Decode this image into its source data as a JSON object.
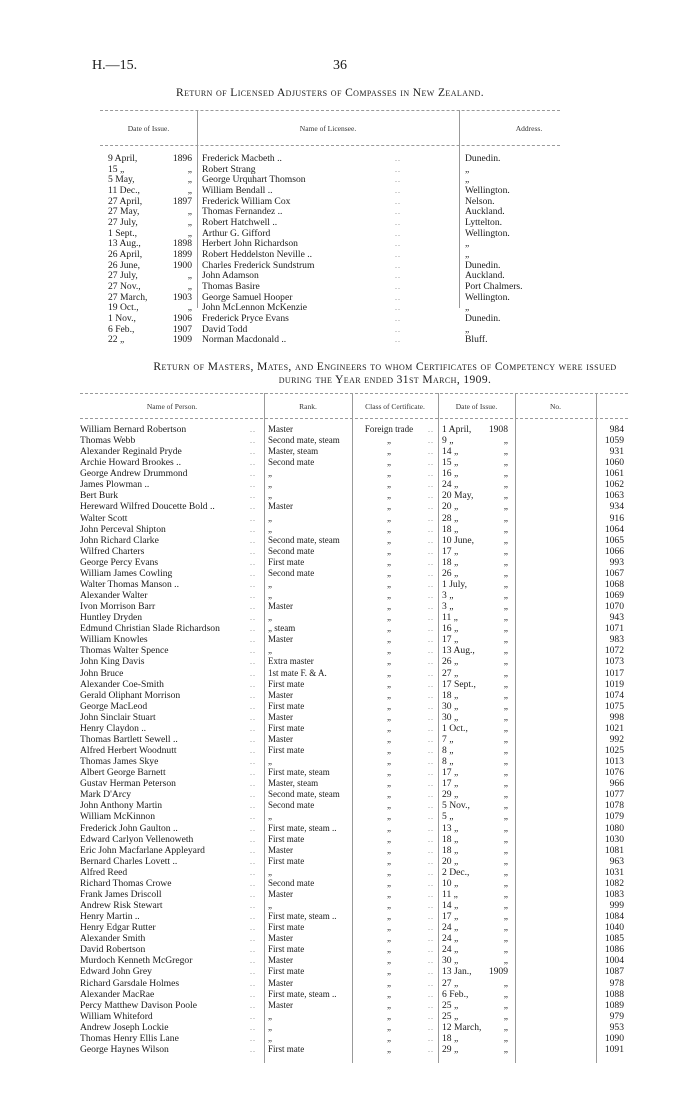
{
  "page_header": {
    "code": "H.—15.",
    "page_number": "36"
  },
  "adjusters": {
    "title": "Return of Licensed Adjusters of Compasses in New Zealand.",
    "columns": [
      "Date of Issue.",
      "Name of Licensee.",
      "Address."
    ],
    "rows": [
      {
        "day": "9 April,",
        "year": "1896",
        "name": "Frederick Macbeth ..",
        "address": "Dunedin."
      },
      {
        "day": "15 „",
        "year": "„",
        "name": "Robert Strang",
        "address": "„"
      },
      {
        "day": "5 May,",
        "year": "„",
        "name": "George Urquhart Thomson",
        "address": "„"
      },
      {
        "day": "11 Dec.,",
        "year": "„",
        "name": "William Bendall ..",
        "address": "Wellington."
      },
      {
        "day": "27 April,",
        "year": "1897",
        "name": "Frederick William Cox",
        "address": "Nelson."
      },
      {
        "day": "27 May,",
        "year": "„",
        "name": "Thomas Fernandez ..",
        "address": "Auckland."
      },
      {
        "day": "27 July,",
        "year": "„",
        "name": "Robert Hatchwell ..",
        "address": "Lyttelton."
      },
      {
        "day": "1 Sept.,",
        "year": "„",
        "name": "Arthur G. Gifford",
        "address": "Wellington."
      },
      {
        "day": "13 Aug.,",
        "year": "1898",
        "name": "Herbert John Richardson",
        "address": "„"
      },
      {
        "day": "26 April,",
        "year": "1899",
        "name": "Robert Heddelston Neville ..",
        "address": "„"
      },
      {
        "day": "26 June,",
        "year": "1900",
        "name": "Charles Frederick Sundstrum",
        "address": "Dunedin."
      },
      {
        "day": "27 July,",
        "year": "„",
        "name": "John Adamson",
        "address": "Auckland."
      },
      {
        "day": "27 Nov.,",
        "year": "„",
        "name": "Thomas Basire",
        "address": "Port Chalmers."
      },
      {
        "day": "27 March,",
        "year": "1903",
        "name": "George Samuel Hooper",
        "address": "Wellington."
      },
      {
        "day": "19 Oct.,",
        "year": "„",
        "name": "John McLennon McKenzie",
        "address": "„"
      },
      {
        "day": "1 Nov.,",
        "year": "1906",
        "name": "Frederick Pryce Evans",
        "address": "Dunedin."
      },
      {
        "day": "6 Feb.,",
        "year": "1907",
        "name": "David Todd",
        "address": "„"
      },
      {
        "day": "22 „",
        "year": "1909",
        "name": "Norman Macdonald ..",
        "address": "Bluff."
      }
    ]
  },
  "certificates": {
    "title_line1": "Return of Masters, Mates, and Engineers to whom Certificates of Competency were issued",
    "title_line2": "during the Year ended 31st March, 1909.",
    "columns": [
      "Name of Person.",
      "Rank.",
      "Class of Certificate.",
      "Date of Issue.",
      "No."
    ],
    "rows": [
      {
        "name": "William Bernard Robertson",
        "rank": "Master",
        "cls": "Foreign trade",
        "day": "1 April,",
        "year": "1908",
        "no": "984"
      },
      {
        "name": "Thomas Webb",
        "rank": "Second mate, steam",
        "cls": "„",
        "day": "9 „",
        "year": "„",
        "no": "1059"
      },
      {
        "name": "Alexander Reginald Pryde",
        "rank": "Master, steam",
        "cls": "„",
        "day": "14 „",
        "year": "„",
        "no": "931"
      },
      {
        "name": "Archie Howard Brookes ..",
        "rank": "Second mate",
        "cls": "„",
        "day": "15 „",
        "year": "„",
        "no": "1060"
      },
      {
        "name": "George Andrew Drummond",
        "rank": "„",
        "cls": "„",
        "day": "16 „",
        "year": "„",
        "no": "1061"
      },
      {
        "name": "James Plowman ..",
        "rank": "„",
        "cls": "„",
        "day": "24 „",
        "year": "„",
        "no": "1062"
      },
      {
        "name": "Bert Burk",
        "rank": "„",
        "cls": "„",
        "day": "20 May,",
        "year": "„",
        "no": "1063"
      },
      {
        "name": "Hereward Wilfred Doucette Bold ..",
        "rank": "Master",
        "cls": "„",
        "day": "20 „",
        "year": "„",
        "no": "934"
      },
      {
        "name": "Walter Scott",
        "rank": "„",
        "cls": "„",
        "day": "28 „",
        "year": "„",
        "no": "916"
      },
      {
        "name": "John Perceval Shipton",
        "rank": "„",
        "cls": "„",
        "day": "18 „",
        "year": "„",
        "no": "1064"
      },
      {
        "name": "John Richard Clarke",
        "rank": "Second mate, steam",
        "cls": "„",
        "day": "10 June,",
        "year": "„",
        "no": "1065"
      },
      {
        "name": "Wilfred Charters",
        "rank": "Second mate",
        "cls": "„",
        "day": "17 „",
        "year": "„",
        "no": "1066"
      },
      {
        "name": "George Percy Evans",
        "rank": "First mate",
        "cls": "„",
        "day": "18 „",
        "year": "„",
        "no": "993"
      },
      {
        "name": "William James Cowling",
        "rank": "Second mate",
        "cls": "„",
        "day": "26 „",
        "year": "„",
        "no": "1067"
      },
      {
        "name": "Walter Thomas Manson ..",
        "rank": "„",
        "cls": "„",
        "day": "1 July,",
        "year": "„",
        "no": "1068"
      },
      {
        "name": "Alexander Walter",
        "rank": "„",
        "cls": "„",
        "day": "3 „",
        "year": "„",
        "no": "1069"
      },
      {
        "name": "Ivon Morrison Barr",
        "rank": "Master",
        "cls": "„",
        "day": "3 „",
        "year": "„",
        "no": "1070"
      },
      {
        "name": "Huntley Dryden",
        "rank": "„",
        "cls": "„",
        "day": "11 „",
        "year": "„",
        "no": "943"
      },
      {
        "name": "Edmund Christian Slade Richardson",
        "rank": "„ steam",
        "cls": "„",
        "day": "16 „",
        "year": "„",
        "no": "1071"
      },
      {
        "name": "William Knowles",
        "rank": "Master",
        "cls": "„",
        "day": "17 „",
        "year": "„",
        "no": "983"
      },
      {
        "name": "Thomas Walter Spence",
        "rank": "„",
        "cls": "„",
        "day": "13 Aug.,",
        "year": "„",
        "no": "1072"
      },
      {
        "name": "John King Davis",
        "rank": "Extra master",
        "cls": "„",
        "day": "26 „",
        "year": "„",
        "no": "1073"
      },
      {
        "name": "John Bruce",
        "rank": "1st mate F. & A.",
        "cls": "„",
        "day": "27 „",
        "year": "„",
        "no": "1017"
      },
      {
        "name": "Alexander Coe-Smith",
        "rank": "First mate",
        "cls": "„",
        "day": "17 Sept.,",
        "year": "„",
        "no": "1019"
      },
      {
        "name": "Gerald Oliphant Morrison",
        "rank": "Master",
        "cls": "„",
        "day": "18 „",
        "year": "„",
        "no": "1074"
      },
      {
        "name": "George MacLeod",
        "rank": "First mate",
        "cls": "„",
        "day": "30 „",
        "year": "„",
        "no": "1075"
      },
      {
        "name": "John Sinclair Stuart",
        "rank": "Master",
        "cls": "„",
        "day": "30 „",
        "year": "„",
        "no": "998"
      },
      {
        "name": "Henry Claydon ..",
        "rank": "First mate",
        "cls": "„",
        "day": "1 Oct.,",
        "year": "„",
        "no": "1021"
      },
      {
        "name": "Thomas Bartlett Sewell ..",
        "rank": "Master",
        "cls": "„",
        "day": "7 „",
        "year": "„",
        "no": "992"
      },
      {
        "name": "Alfred Herbert Woodnutt",
        "rank": "First mate",
        "cls": "„",
        "day": "8 „",
        "year": "„",
        "no": "1025"
      },
      {
        "name": "Thomas James Skye",
        "rank": "„",
        "cls": "„",
        "day": "8 „",
        "year": "„",
        "no": "1013"
      },
      {
        "name": "Albert George Barnett",
        "rank": "First mate, steam",
        "cls": "„",
        "day": "17 „",
        "year": "„",
        "no": "1076"
      },
      {
        "name": "Gustav Herman Peterson",
        "rank": "Master, steam",
        "cls": "„",
        "day": "17 „",
        "year": "„",
        "no": "966"
      },
      {
        "name": "Mark D'Arcy",
        "rank": "Second mate, steam",
        "cls": "„",
        "day": "29 „",
        "year": "„",
        "no": "1077"
      },
      {
        "name": "John Anthony Martin",
        "rank": "Second mate",
        "cls": "„",
        "day": "5 Nov.,",
        "year": "„",
        "no": "1078"
      },
      {
        "name": "William McKinnon",
        "rank": "„",
        "cls": "„",
        "day": "5 „",
        "year": "„",
        "no": "1079"
      },
      {
        "name": "Frederick John Gaulton ..",
        "rank": "First mate, steam ..",
        "cls": "„",
        "day": "13 „",
        "year": "„",
        "no": "1080"
      },
      {
        "name": "Edward Carlyon Vellenoweth",
        "rank": "First mate",
        "cls": "„",
        "day": "18 „",
        "year": "„",
        "no": "1030"
      },
      {
        "name": "Eric John Macfarlane Appleyard",
        "rank": "Master",
        "cls": "„",
        "day": "18 „",
        "year": "„",
        "no": "1081"
      },
      {
        "name": "Bernard Charles Lovett ..",
        "rank": "First mate",
        "cls": "„",
        "day": "20 „",
        "year": "„",
        "no": "963"
      },
      {
        "name": "Alfred Reed",
        "rank": "„",
        "cls": "„",
        "day": "2 Dec.,",
        "year": "„",
        "no": "1031"
      },
      {
        "name": "Richard Thomas Crowe",
        "rank": "Second mate",
        "cls": "„",
        "day": "10 „",
        "year": "„",
        "no": "1082"
      },
      {
        "name": "Frank James Driscoll",
        "rank": "Master",
        "cls": "„",
        "day": "11 „",
        "year": "„",
        "no": "1083"
      },
      {
        "name": "Andrew Risk Stewart",
        "rank": "„",
        "cls": "„",
        "day": "14 „",
        "year": "„",
        "no": "999"
      },
      {
        "name": "Henry Martin ..",
        "rank": "First mate, steam ..",
        "cls": "„",
        "day": "17 „",
        "year": "„",
        "no": "1084"
      },
      {
        "name": "Henry Edgar Rutter",
        "rank": "First mate",
        "cls": "„",
        "day": "24 „",
        "year": "„",
        "no": "1040"
      },
      {
        "name": "Alexander Smith",
        "rank": "Master",
        "cls": "„",
        "day": "24 „",
        "year": "„",
        "no": "1085"
      },
      {
        "name": "David Robertson",
        "rank": "First mate",
        "cls": "„",
        "day": "24 „",
        "year": "„",
        "no": "1086"
      },
      {
        "name": "Murdoch Kenneth McGregor",
        "rank": "Master",
        "cls": "„",
        "day": "30 „",
        "year": "„",
        "no": "1004"
      },
      {
        "name": "Edward John Grey",
        "rank": "First mate",
        "cls": "„",
        "day": "13 Jan.,",
        "year": "1909",
        "no": "1087"
      },
      {
        "name": "Richard Garsdale Holmes",
        "rank": "Master",
        "cls": "„",
        "day": "27 „",
        "year": "„",
        "no": "978"
      },
      {
        "name": "Alexander MacRae",
        "rank": "First mate, steam ..",
        "cls": "„",
        "day": "6 Feb.,",
        "year": "„",
        "no": "1088"
      },
      {
        "name": "Percy Matthew Davison Poole",
        "rank": "Master",
        "cls": "„",
        "day": "25 „",
        "year": "„",
        "no": "1089"
      },
      {
        "name": "William Whiteford",
        "rank": "„",
        "cls": "„",
        "day": "25 „",
        "year": "„",
        "no": "979"
      },
      {
        "name": "Andrew Joseph Lockie",
        "rank": "„",
        "cls": "„",
        "day": "12 March,",
        "year": "„",
        "no": "953"
      },
      {
        "name": "Thomas Henry Ellis Lane",
        "rank": "„",
        "cls": "„",
        "day": "18 „",
        "year": "„",
        "no": "1090"
      },
      {
        "name": "George Haynes Wilson",
        "rank": "First mate",
        "cls": "„",
        "day": "29 „",
        "year": "„",
        "no": "1091"
      }
    ]
  }
}
